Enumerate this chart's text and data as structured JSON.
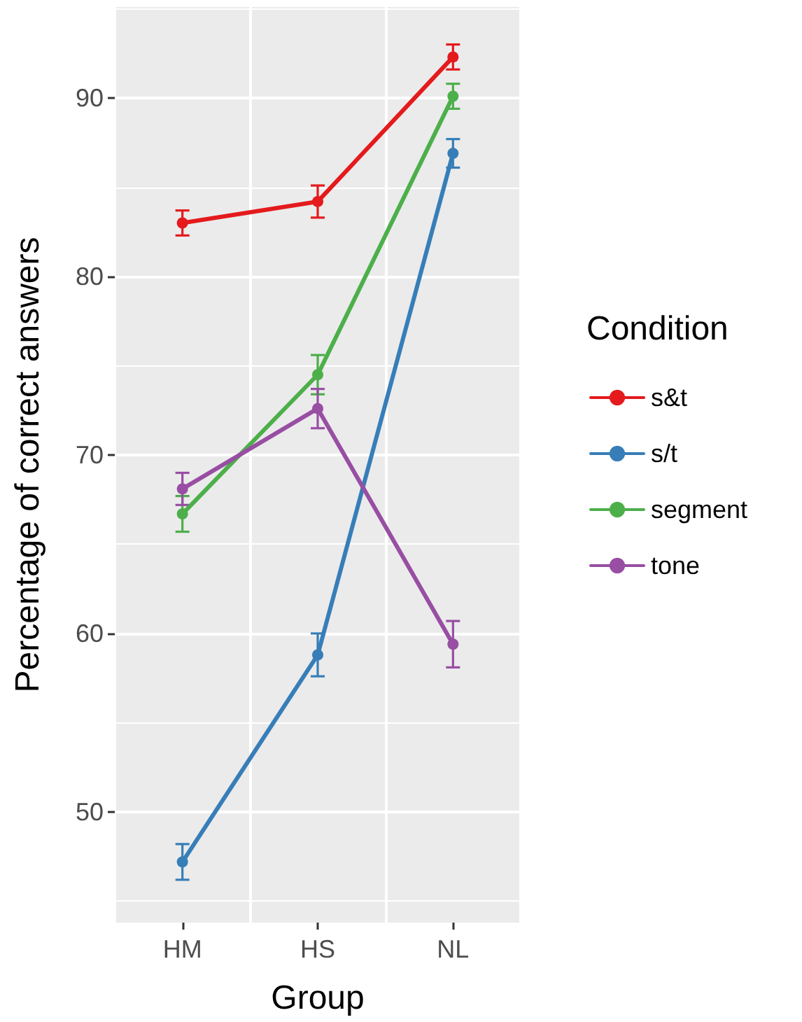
{
  "chart_data": {
    "type": "line",
    "xlabel": "Group",
    "ylabel": "Percentage of correct answers",
    "legend_title": "Condition",
    "categories": [
      "HM",
      "HS",
      "NL"
    ],
    "series": [
      {
        "name": "s&t",
        "color": "#e41a1c",
        "values": [
          83.0,
          84.2,
          92.3
        ],
        "errors": [
          0.7,
          0.9,
          0.7
        ]
      },
      {
        "name": "s/t",
        "color": "#377eb8",
        "values": [
          47.2,
          58.8,
          86.9
        ],
        "errors": [
          1.0,
          1.2,
          0.8
        ]
      },
      {
        "name": "segment",
        "color": "#4daf4a",
        "values": [
          66.7,
          74.5,
          90.1
        ],
        "errors": [
          1.0,
          1.1,
          0.7
        ]
      },
      {
        "name": "tone",
        "color": "#984ea3",
        "values": [
          68.1,
          72.6,
          59.4
        ],
        "errors": [
          0.9,
          1.1,
          1.3
        ]
      }
    ],
    "ylim": [
      43.8,
      95.1
    ],
    "yticks": [
      50,
      60,
      70,
      80,
      90
    ],
    "grid": true,
    "legend": "right",
    "marker": "circle",
    "line_style": "solid"
  }
}
